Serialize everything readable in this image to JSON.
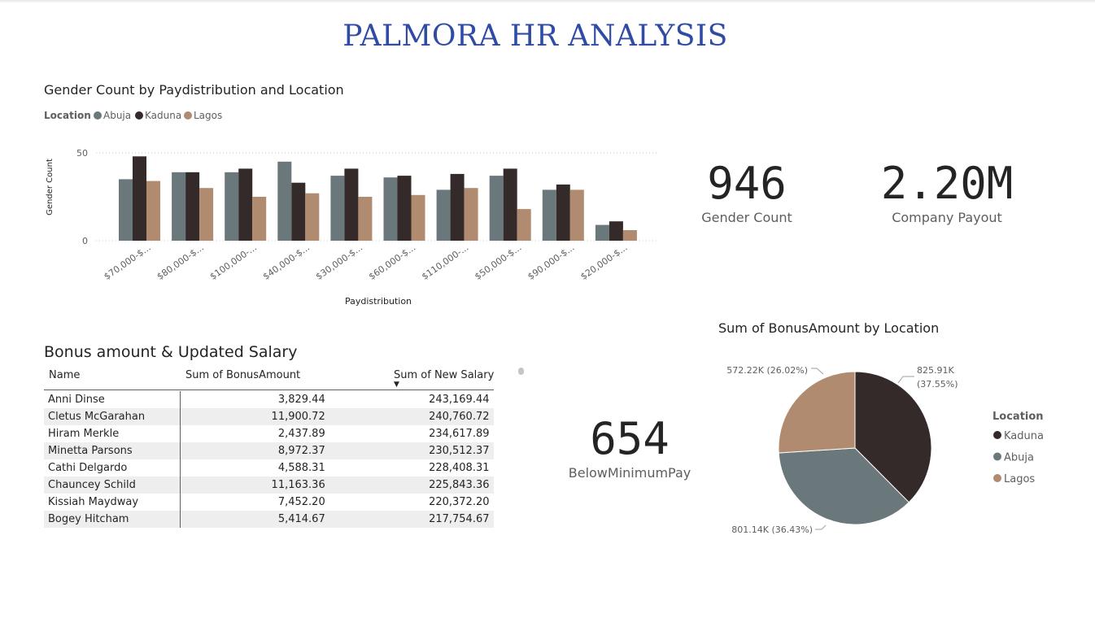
{
  "report": {
    "title": "PALMORA HR ANALYSIS"
  },
  "bar_visual": {
    "title": "Gender Count by Paydistribution and Location"
  },
  "cards": {
    "gender_count": {
      "value": "946",
      "label": "Gender Count"
    },
    "company_payout": {
      "value": "2.20M",
      "label": "Company Payout"
    },
    "below_min_pay": {
      "value": "654",
      "label": "BelowMinimumPay"
    }
  },
  "table_visual": {
    "title": "Bonus amount & Updated Salary",
    "columns": [
      "Name",
      "Sum of BonusAmount",
      "Sum of New Salary"
    ],
    "rows": [
      {
        "name": "Anni Dinse",
        "bonus": "3,829.44",
        "salary": "243,169.44"
      },
      {
        "name": "Cletus McGarahan",
        "bonus": "11,900.72",
        "salary": "240,760.72"
      },
      {
        "name": "Hiram Merkle",
        "bonus": "2,437.89",
        "salary": "234,617.89"
      },
      {
        "name": "Minetta Parsons",
        "bonus": "8,972.37",
        "salary": "230,512.37"
      },
      {
        "name": "Cathi Delgardo",
        "bonus": "4,588.31",
        "salary": "228,408.31"
      },
      {
        "name": "Chauncey Schild",
        "bonus": "11,163.36",
        "salary": "225,843.36"
      },
      {
        "name": "Kissiah Maydway",
        "bonus": "7,452.20",
        "salary": "220,372.20"
      },
      {
        "name": "Bogey Hitcham",
        "bonus": "5,414.67",
        "salary": "217,754.67"
      }
    ]
  },
  "pie_visual": {
    "title": "Sum of BonusAmount by Location"
  },
  "chart_data": [
    {
      "type": "bar",
      "title": "Gender Count by Paydistribution and Location",
      "xlabel": "Paydistribution",
      "ylabel": "Gender Count",
      "legend_title": "Location",
      "legend_position": "top-left",
      "grid": true,
      "ylim": [
        0,
        50
      ],
      "yticks": [
        0,
        50
      ],
      "categories": [
        "$70,000-$...",
        "$80,000-$...",
        "$100,000-...",
        "$40,000-$...",
        "$30,000-$...",
        "$60,000-$...",
        "$110,000-...",
        "$50,000-$...",
        "$90,000-$...",
        "$20,000-$..."
      ],
      "series": [
        {
          "name": "Abuja",
          "color": "#6b787b",
          "values": [
            35,
            39,
            39,
            45,
            37,
            36,
            29,
            37,
            29,
            9
          ]
        },
        {
          "name": "Kaduna",
          "color": "#352a2a",
          "values": [
            48,
            39,
            41,
            33,
            41,
            37,
            38,
            41,
            32,
            11
          ]
        },
        {
          "name": "Lagos",
          "color": "#b08b70",
          "values": [
            34,
            30,
            25,
            27,
            25,
            26,
            30,
            18,
            29,
            6
          ]
        }
      ]
    },
    {
      "type": "pie",
      "title": "Sum of BonusAmount by Location",
      "legend_title": "Location",
      "legend_position": "right",
      "slices": [
        {
          "name": "Kaduna",
          "value": 825910,
          "label": "825.91K",
          "pct": "(37.55%)",
          "color": "#352a2a"
        },
        {
          "name": "Abuja",
          "value": 801140,
          "label": "801.14K (36.43%)",
          "color": "#6b787b"
        },
        {
          "name": "Lagos",
          "value": 572220,
          "label": "572.22K (26.02%)",
          "color": "#b08b70"
        }
      ]
    }
  ]
}
